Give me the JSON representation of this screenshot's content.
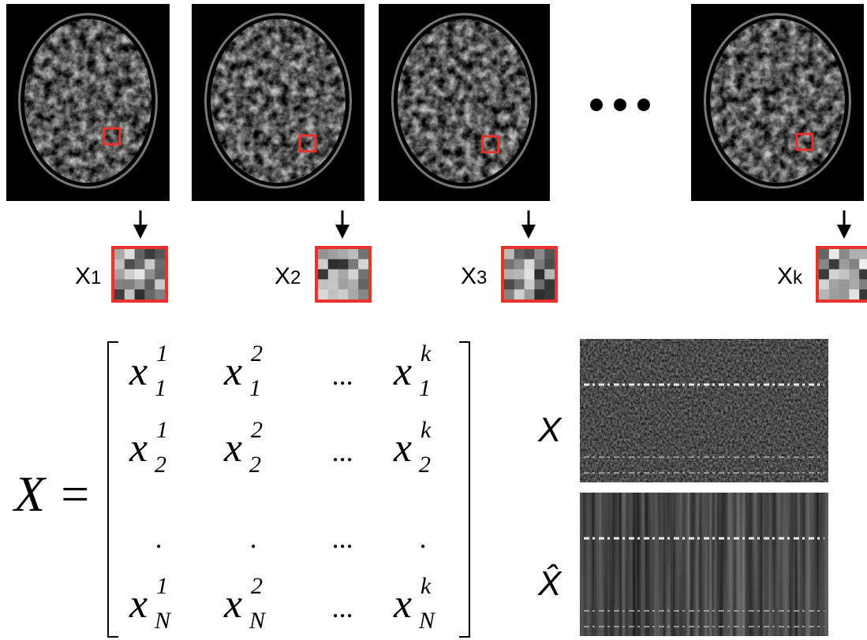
{
  "patches": [
    {
      "label": "X",
      "subscript": "1"
    },
    {
      "label": "X",
      "subscript": "2"
    },
    {
      "label": "X",
      "subscript": "3"
    },
    {
      "label": "X",
      "subscript": "k"
    }
  ],
  "matrix": {
    "lhs": "X =",
    "rows": [
      [
        {
          "base": "x",
          "sub": "1",
          "sup": "1"
        },
        {
          "base": "x",
          "sub": "1",
          "sup": "2"
        },
        {
          "text": "..."
        },
        {
          "base": "x",
          "sub": "1",
          "sup": "k"
        }
      ],
      [
        {
          "base": "x",
          "sub": "2",
          "sup": "1"
        },
        {
          "base": "x",
          "sub": "2",
          "sup": "2"
        },
        {
          "text": "..."
        },
        {
          "base": "x",
          "sub": "2",
          "sup": "k"
        }
      ],
      [
        {
          "text": "."
        },
        {
          "text": "."
        },
        {
          "text": "..."
        },
        {
          "text": "."
        }
      ],
      [
        {
          "base": "x",
          "sub": "N",
          "sup": "1"
        },
        {
          "base": "x",
          "sub": "N",
          "sup": "2"
        },
        {
          "text": "..."
        },
        {
          "base": "x",
          "sub": "N",
          "sup": "k"
        }
      ]
    ]
  },
  "heatmaps": [
    {
      "label": "X"
    },
    {
      "label": "X̂"
    }
  ]
}
